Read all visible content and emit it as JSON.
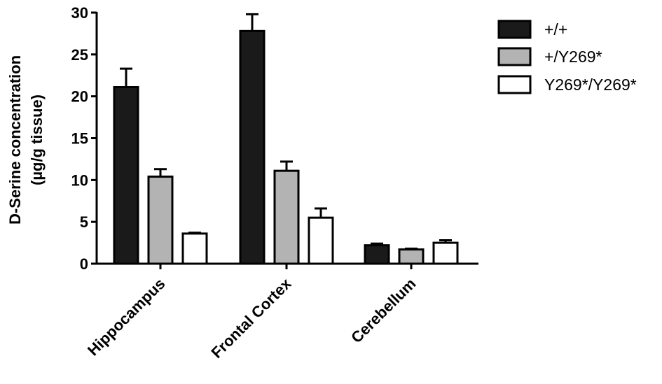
{
  "chart_data": {
    "type": "bar",
    "title": "",
    "xlabel": "",
    "ylabel_lines": [
      "D-Serine concentration",
      "(µg/g tissue)"
    ],
    "ylim": [
      0,
      30
    ],
    "yticks": [
      0,
      5,
      10,
      15,
      20,
      25,
      30
    ],
    "categories": [
      "Hippocampus",
      "Frontal Cortex",
      "Cerebellum"
    ],
    "series": [
      {
        "name": "+/+",
        "color": "#1a1a1a",
        "values": [
          21.1,
          27.8,
          2.2
        ],
        "errors": [
          2.2,
          2.0,
          0.2
        ]
      },
      {
        "name": "+/Y269*",
        "color": "#b3b3b3",
        "values": [
          10.4,
          11.1,
          1.7
        ],
        "errors": [
          0.9,
          1.1,
          0.1
        ]
      },
      {
        "name": "Y269*/Y269*",
        "color": "#ffffff",
        "values": [
          3.6,
          5.5,
          2.5
        ],
        "errors": [
          0.1,
          1.1,
          0.3
        ]
      }
    ],
    "legend_position": "top-right",
    "grid": false
  }
}
